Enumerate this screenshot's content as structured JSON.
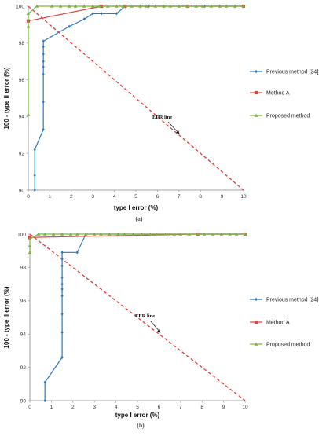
{
  "chart_data": [
    {
      "type": "line",
      "caption": "(a)",
      "xlabel": "type I error (%)",
      "ylabel": "100 - type II error (%)",
      "xlim": [
        0,
        10
      ],
      "ylim": [
        90,
        100
      ],
      "xticks": [
        0,
        1,
        2,
        3,
        4,
        5,
        6,
        7,
        8,
        9,
        10
      ],
      "yticks": [
        90,
        92,
        94,
        96,
        98,
        100
      ],
      "legend_position": "right",
      "grid": false,
      "series": [
        {
          "name": "Previous method [24]",
          "color": "#2b7bbf",
          "marker": "diamond",
          "points": [
            [
              0.3,
              90.0
            ],
            [
              0.3,
              90.8
            ],
            [
              0.3,
              92.2
            ],
            [
              0.7,
              93.3
            ],
            [
              0.7,
              94.8
            ],
            [
              0.7,
              96.3
            ],
            [
              0.7,
              96.7
            ],
            [
              0.7,
              97.0
            ],
            [
              0.7,
              97.4
            ],
            [
              0.7,
              97.8
            ],
            [
              0.7,
              98.1
            ],
            [
              1.9,
              98.9
            ],
            [
              2.6,
              99.3
            ],
            [
              3.0,
              99.6
            ],
            [
              3.4,
              99.6
            ],
            [
              4.1,
              99.6
            ],
            [
              4.5,
              100.0
            ],
            [
              5.2,
              100.0
            ],
            [
              5.6,
              100.0
            ],
            [
              6.3,
              100.0
            ],
            [
              7.4,
              100.0
            ],
            [
              8.2,
              100.0
            ],
            [
              8.9,
              100.0
            ],
            [
              9.6,
              100.0
            ],
            [
              10.0,
              100.0
            ]
          ]
        },
        {
          "name": "Method A",
          "color": "#d9473b",
          "marker": "square",
          "points": [
            [
              0.0,
              99.2
            ],
            [
              3.4,
              100.0
            ],
            [
              4.5,
              100.0
            ],
            [
              7.4,
              100.0
            ],
            [
              10.0,
              100.0
            ]
          ]
        },
        {
          "name": "Proposed method",
          "color": "#7cb342",
          "marker": "triangle",
          "points": [
            [
              0.0,
              94.1
            ],
            [
              0.0,
              98.9
            ],
            [
              0.0,
              99.6
            ],
            [
              0.4,
              100.0
            ],
            [
              1.1,
              100.0
            ],
            [
              1.5,
              100.0
            ],
            [
              1.9,
              100.0
            ],
            [
              2.2,
              100.0
            ],
            [
              2.6,
              100.0
            ],
            [
              3.0,
              100.0
            ],
            [
              3.3,
              100.0
            ],
            [
              3.7,
              100.0
            ],
            [
              4.1,
              100.0
            ],
            [
              4.4,
              100.0
            ],
            [
              4.8,
              100.0
            ],
            [
              5.2,
              100.0
            ],
            [
              5.5,
              100.0
            ],
            [
              5.9,
              100.0
            ],
            [
              6.3,
              100.0
            ],
            [
              6.6,
              100.0
            ],
            [
              7.0,
              100.0
            ],
            [
              7.4,
              100.0
            ],
            [
              7.8,
              100.0
            ],
            [
              8.1,
              100.0
            ],
            [
              8.5,
              100.0
            ],
            [
              8.9,
              100.0
            ],
            [
              9.2,
              100.0
            ],
            [
              9.6,
              100.0
            ],
            [
              10.0,
              100.0
            ]
          ]
        }
      ],
      "eer_line": {
        "label": "EER line",
        "color": "#e53935",
        "from": [
          0,
          100
        ],
        "to": [
          10,
          90
        ],
        "label_at": [
          5.2,
          95.4
        ],
        "arrow_to": [
          6.0,
          94.3
        ]
      }
    },
    {
      "type": "line",
      "caption": "(b)",
      "xlabel": "type I error (%)",
      "ylabel": "100 - type II error (%)",
      "xlim": [
        0,
        10
      ],
      "ylim": [
        90,
        100
      ],
      "xticks": [
        0,
        1,
        2,
        3,
        4,
        5,
        6,
        7,
        8,
        9,
        10
      ],
      "yticks": [
        90,
        92,
        94,
        96,
        98,
        100
      ],
      "legend_position": "right",
      "grid": false,
      "series": [
        {
          "name": "Previous method [24]",
          "color": "#2b7bbf",
          "marker": "diamond",
          "points": [
            [
              0.7,
              90.0
            ],
            [
              0.7,
              91.1
            ],
            [
              1.5,
              92.6
            ],
            [
              1.5,
              94.1
            ],
            [
              1.5,
              95.2
            ],
            [
              1.5,
              96.3
            ],
            [
              1.5,
              96.7
            ],
            [
              1.5,
              97.0
            ],
            [
              1.5,
              97.4
            ],
            [
              1.5,
              98.1
            ],
            [
              1.5,
              98.5
            ],
            [
              1.5,
              98.9
            ],
            [
              2.2,
              98.9
            ],
            [
              2.6,
              100.0
            ],
            [
              3.0,
              100.0
            ],
            [
              3.3,
              100.0
            ],
            [
              4.8,
              100.0
            ],
            [
              7.0,
              100.0
            ],
            [
              8.1,
              100.0
            ],
            [
              8.9,
              100.0
            ],
            [
              10.0,
              100.0
            ]
          ]
        },
        {
          "name": "Method A",
          "color": "#d9473b",
          "marker": "square",
          "points": [
            [
              0.0,
              99.8
            ],
            [
              7.8,
              100.0
            ],
            [
              10.0,
              100.0
            ]
          ]
        },
        {
          "name": "Proposed method",
          "color": "#7cb342",
          "marker": "triangle",
          "points": [
            [
              0.0,
              98.9
            ],
            [
              0.0,
              99.3
            ],
            [
              0.0,
              99.7
            ],
            [
              0.4,
              100.0
            ],
            [
              0.7,
              100.0
            ],
            [
              1.1,
              100.0
            ],
            [
              1.5,
              100.0
            ],
            [
              1.9,
              100.0
            ],
            [
              2.2,
              100.0
            ],
            [
              2.6,
              100.0
            ],
            [
              3.0,
              100.0
            ],
            [
              3.3,
              100.0
            ],
            [
              3.7,
              100.0
            ],
            [
              4.1,
              100.0
            ],
            [
              4.4,
              100.0
            ],
            [
              4.8,
              100.0
            ],
            [
              5.2,
              100.0
            ],
            [
              5.6,
              100.0
            ],
            [
              5.9,
              100.0
            ],
            [
              6.3,
              100.0
            ],
            [
              6.7,
              100.0
            ],
            [
              7.0,
              100.0
            ],
            [
              7.4,
              100.0
            ],
            [
              7.8,
              100.0
            ],
            [
              8.1,
              100.0
            ],
            [
              8.5,
              100.0
            ],
            [
              8.9,
              100.0
            ],
            [
              9.3,
              100.0
            ],
            [
              9.6,
              100.0
            ],
            [
              10.0,
              100.0
            ]
          ]
        }
      ],
      "eer_line": {
        "label": "EER line",
        "color": "#e53935",
        "from": [
          0,
          100
        ],
        "to": [
          10,
          90
        ],
        "label_at": [
          4.8,
          95.6
        ],
        "arrow_to": [
          5.6,
          94.5
        ]
      }
    }
  ]
}
